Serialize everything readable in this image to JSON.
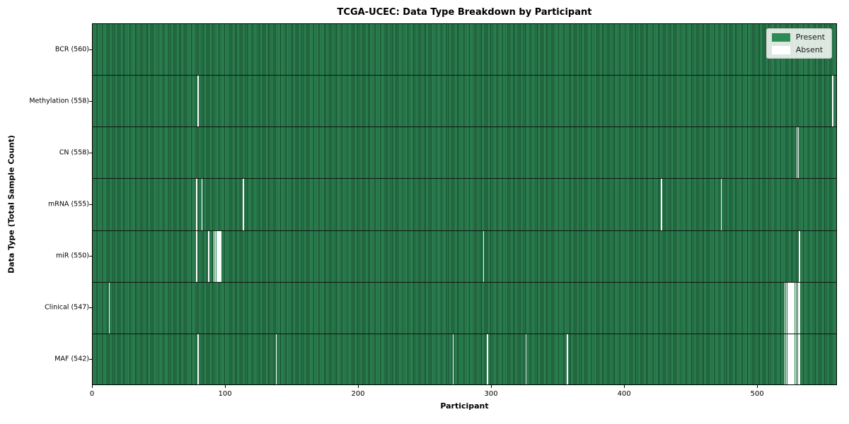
{
  "chart_data": {
    "type": "heatmap",
    "title": "TCGA-UCEC: Data Type Breakdown by Participant",
    "xlabel": "Participant",
    "ylabel": "Data Type (Total Sample Count)",
    "xlim": [
      0,
      560
    ],
    "x_ticks": [
      0,
      100,
      200,
      300,
      400,
      500
    ],
    "n_participants": 560,
    "grid": false,
    "legend_position": "upper right",
    "legend": [
      {
        "label": "Present",
        "color": "#2e8b57"
      },
      {
        "label": "Absent",
        "color": "#ffffff"
      }
    ],
    "rows": [
      {
        "data_type": "BCR",
        "label": "BCR (560)",
        "present_count": 560,
        "absent_participants": []
      },
      {
        "data_type": "Methylation",
        "label": "Methylation (558)",
        "present_count": 558,
        "absent_participants": [
          79,
          557
        ]
      },
      {
        "data_type": "CN",
        "label": "CN (558)",
        "present_count": 558,
        "absent_participants": [
          530,
          531
        ]
      },
      {
        "data_type": "mRNA",
        "label": "mRNA (555)",
        "present_count": 555,
        "absent_participants": [
          78,
          82,
          113,
          428,
          473
        ]
      },
      {
        "data_type": "miR",
        "label": "miR (550)",
        "present_count": 550,
        "absent_participants": [
          78,
          87,
          91,
          92,
          93,
          94,
          95,
          96,
          294,
          532
        ]
      },
      {
        "data_type": "Clinical",
        "label": "Clinical (547)",
        "present_count": 547,
        "absent_participants": [
          12,
          521,
          522,
          523,
          524,
          525,
          526,
          527,
          528,
          529,
          530,
          531,
          532
        ]
      },
      {
        "data_type": "MAF",
        "label": "MAF (542)",
        "present_count": 542,
        "absent_participants": [
          79,
          138,
          271,
          297,
          326,
          357,
          521,
          522,
          523,
          524,
          525,
          526,
          527,
          528,
          529,
          530,
          531,
          532
        ]
      }
    ],
    "colors": {
      "present": "#2e8b57",
      "present_edge": "#16432a",
      "absent": "#ffffff",
      "row_divider": "#101510"
    }
  }
}
